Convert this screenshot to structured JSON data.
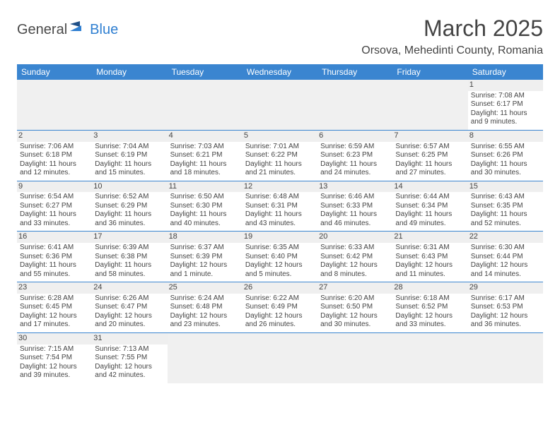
{
  "brand": {
    "part1": "General",
    "part2": "Blue"
  },
  "title": "March 2025",
  "location": "Orsova, Mehedinti County, Romania",
  "colors": {
    "header_bg": "#3a85d0",
    "header_text": "#ffffff",
    "border": "#3a85d0",
    "text": "#444444",
    "brand_blue": "#2f7fd1",
    "daynum_bg": "#efefef"
  },
  "weekdays": [
    "Sunday",
    "Monday",
    "Tuesday",
    "Wednesday",
    "Thursday",
    "Friday",
    "Saturday"
  ],
  "weeks": [
    [
      null,
      null,
      null,
      null,
      null,
      null,
      {
        "n": "1",
        "sr": "Sunrise: 7:08 AM",
        "ss": "Sunset: 6:17 PM",
        "dl1": "Daylight: 11 hours",
        "dl2": "and 9 minutes."
      }
    ],
    [
      {
        "n": "2",
        "sr": "Sunrise: 7:06 AM",
        "ss": "Sunset: 6:18 PM",
        "dl1": "Daylight: 11 hours",
        "dl2": "and 12 minutes."
      },
      {
        "n": "3",
        "sr": "Sunrise: 7:04 AM",
        "ss": "Sunset: 6:19 PM",
        "dl1": "Daylight: 11 hours",
        "dl2": "and 15 minutes."
      },
      {
        "n": "4",
        "sr": "Sunrise: 7:03 AM",
        "ss": "Sunset: 6:21 PM",
        "dl1": "Daylight: 11 hours",
        "dl2": "and 18 minutes."
      },
      {
        "n": "5",
        "sr": "Sunrise: 7:01 AM",
        "ss": "Sunset: 6:22 PM",
        "dl1": "Daylight: 11 hours",
        "dl2": "and 21 minutes."
      },
      {
        "n": "6",
        "sr": "Sunrise: 6:59 AM",
        "ss": "Sunset: 6:23 PM",
        "dl1": "Daylight: 11 hours",
        "dl2": "and 24 minutes."
      },
      {
        "n": "7",
        "sr": "Sunrise: 6:57 AM",
        "ss": "Sunset: 6:25 PM",
        "dl1": "Daylight: 11 hours",
        "dl2": "and 27 minutes."
      },
      {
        "n": "8",
        "sr": "Sunrise: 6:55 AM",
        "ss": "Sunset: 6:26 PM",
        "dl1": "Daylight: 11 hours",
        "dl2": "and 30 minutes."
      }
    ],
    [
      {
        "n": "9",
        "sr": "Sunrise: 6:54 AM",
        "ss": "Sunset: 6:27 PM",
        "dl1": "Daylight: 11 hours",
        "dl2": "and 33 minutes."
      },
      {
        "n": "10",
        "sr": "Sunrise: 6:52 AM",
        "ss": "Sunset: 6:29 PM",
        "dl1": "Daylight: 11 hours",
        "dl2": "and 36 minutes."
      },
      {
        "n": "11",
        "sr": "Sunrise: 6:50 AM",
        "ss": "Sunset: 6:30 PM",
        "dl1": "Daylight: 11 hours",
        "dl2": "and 40 minutes."
      },
      {
        "n": "12",
        "sr": "Sunrise: 6:48 AM",
        "ss": "Sunset: 6:31 PM",
        "dl1": "Daylight: 11 hours",
        "dl2": "and 43 minutes."
      },
      {
        "n": "13",
        "sr": "Sunrise: 6:46 AM",
        "ss": "Sunset: 6:33 PM",
        "dl1": "Daylight: 11 hours",
        "dl2": "and 46 minutes."
      },
      {
        "n": "14",
        "sr": "Sunrise: 6:44 AM",
        "ss": "Sunset: 6:34 PM",
        "dl1": "Daylight: 11 hours",
        "dl2": "and 49 minutes."
      },
      {
        "n": "15",
        "sr": "Sunrise: 6:43 AM",
        "ss": "Sunset: 6:35 PM",
        "dl1": "Daylight: 11 hours",
        "dl2": "and 52 minutes."
      }
    ],
    [
      {
        "n": "16",
        "sr": "Sunrise: 6:41 AM",
        "ss": "Sunset: 6:36 PM",
        "dl1": "Daylight: 11 hours",
        "dl2": "and 55 minutes."
      },
      {
        "n": "17",
        "sr": "Sunrise: 6:39 AM",
        "ss": "Sunset: 6:38 PM",
        "dl1": "Daylight: 11 hours",
        "dl2": "and 58 minutes."
      },
      {
        "n": "18",
        "sr": "Sunrise: 6:37 AM",
        "ss": "Sunset: 6:39 PM",
        "dl1": "Daylight: 12 hours",
        "dl2": "and 1 minute."
      },
      {
        "n": "19",
        "sr": "Sunrise: 6:35 AM",
        "ss": "Sunset: 6:40 PM",
        "dl1": "Daylight: 12 hours",
        "dl2": "and 5 minutes."
      },
      {
        "n": "20",
        "sr": "Sunrise: 6:33 AM",
        "ss": "Sunset: 6:42 PM",
        "dl1": "Daylight: 12 hours",
        "dl2": "and 8 minutes."
      },
      {
        "n": "21",
        "sr": "Sunrise: 6:31 AM",
        "ss": "Sunset: 6:43 PM",
        "dl1": "Daylight: 12 hours",
        "dl2": "and 11 minutes."
      },
      {
        "n": "22",
        "sr": "Sunrise: 6:30 AM",
        "ss": "Sunset: 6:44 PM",
        "dl1": "Daylight: 12 hours",
        "dl2": "and 14 minutes."
      }
    ],
    [
      {
        "n": "23",
        "sr": "Sunrise: 6:28 AM",
        "ss": "Sunset: 6:45 PM",
        "dl1": "Daylight: 12 hours",
        "dl2": "and 17 minutes."
      },
      {
        "n": "24",
        "sr": "Sunrise: 6:26 AM",
        "ss": "Sunset: 6:47 PM",
        "dl1": "Daylight: 12 hours",
        "dl2": "and 20 minutes."
      },
      {
        "n": "25",
        "sr": "Sunrise: 6:24 AM",
        "ss": "Sunset: 6:48 PM",
        "dl1": "Daylight: 12 hours",
        "dl2": "and 23 minutes."
      },
      {
        "n": "26",
        "sr": "Sunrise: 6:22 AM",
        "ss": "Sunset: 6:49 PM",
        "dl1": "Daylight: 12 hours",
        "dl2": "and 26 minutes."
      },
      {
        "n": "27",
        "sr": "Sunrise: 6:20 AM",
        "ss": "Sunset: 6:50 PM",
        "dl1": "Daylight: 12 hours",
        "dl2": "and 30 minutes."
      },
      {
        "n": "28",
        "sr": "Sunrise: 6:18 AM",
        "ss": "Sunset: 6:52 PM",
        "dl1": "Daylight: 12 hours",
        "dl2": "and 33 minutes."
      },
      {
        "n": "29",
        "sr": "Sunrise: 6:17 AM",
        "ss": "Sunset: 6:53 PM",
        "dl1": "Daylight: 12 hours",
        "dl2": "and 36 minutes."
      }
    ],
    [
      {
        "n": "30",
        "sr": "Sunrise: 7:15 AM",
        "ss": "Sunset: 7:54 PM",
        "dl1": "Daylight: 12 hours",
        "dl2": "and 39 minutes."
      },
      {
        "n": "31",
        "sr": "Sunrise: 7:13 AM",
        "ss": "Sunset: 7:55 PM",
        "dl1": "Daylight: 12 hours",
        "dl2": "and 42 minutes."
      },
      null,
      null,
      null,
      null,
      null
    ]
  ]
}
